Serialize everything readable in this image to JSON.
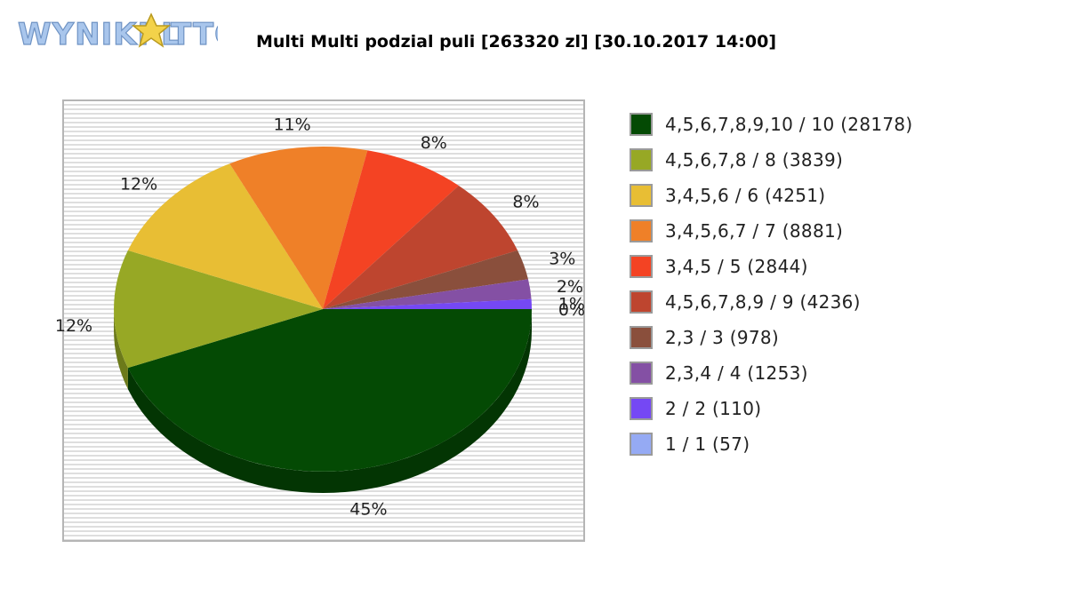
{
  "logo": {
    "text": "WYNIKI LOTTO",
    "fill_color": "#a9c6ec",
    "star_color": "#f3d24a"
  },
  "chart_data": {
    "type": "pie",
    "title": "Multi Multi podzial puli [263320 zl] [30.10.2017 14:00]",
    "background": "striped grey",
    "legend_placement": "right",
    "slices": [
      {
        "legend": "4,5,6,7,8,9,10 / 10 (28178)",
        "value": 45,
        "label": "45%",
        "color": "#044a04",
        "side": "#033503"
      },
      {
        "legend": "4,5,6,7,8 / 8 (3839)",
        "value": 12,
        "label": "12%",
        "color": "#97a825",
        "side": "#6c7a1a"
      },
      {
        "legend": "3,4,5,6 / 6 (4251)",
        "value": 12,
        "label": "12%",
        "color": "#e8be34",
        "side": "#a8891f"
      },
      {
        "legend": "3,4,5,6,7 / 7 (8881)",
        "value": 11,
        "label": "11%",
        "color": "#ef8028",
        "side": "#ad5b1c"
      },
      {
        "legend": "3,4,5 / 5 (2844)",
        "value": 8,
        "label": "8%",
        "color": "#f44323",
        "side": "#ae2f18"
      },
      {
        "legend": "4,5,6,7,8,9 / 9 (4236)",
        "value": 8,
        "label": "8%",
        "color": "#be452f",
        "side": "#863021"
      },
      {
        "legend": "2,3 / 3 (978)",
        "value": 3,
        "label": "3%",
        "color": "#8a4f3c",
        "side": "#62382a"
      },
      {
        "legend": "2,3,4 / 4 (1253)",
        "value": 2,
        "label": "2%",
        "color": "#8450a4",
        "side": "#5d3974"
      },
      {
        "legend": "2 / 2 (110)",
        "value": 1,
        "label": "1%",
        "color": "#7548f4",
        "side": "#5432b0"
      },
      {
        "legend": "1 / 1 (57)",
        "value": 0,
        "label": "0%",
        "color": "#95aaf4",
        "side": "#6b7bb0"
      }
    ]
  }
}
